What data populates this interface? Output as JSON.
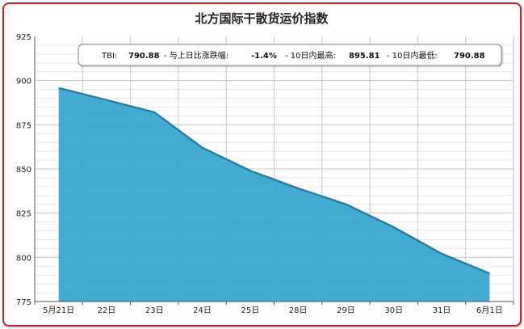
{
  "chart_data": {
    "type": "area",
    "title": "北方国际干散货运价指数",
    "xlabel": "",
    "ylabel": "",
    "categories": [
      "5月21日",
      "22日",
      "23日",
      "24日",
      "25日",
      "28日",
      "29日",
      "30日",
      "31日",
      "6月1日"
    ],
    "series": [
      {
        "values": [
          895.81,
          889,
          882,
          862,
          849,
          839,
          830,
          817,
          802,
          790.88
        ]
      }
    ],
    "ylim": [
      775,
      925
    ],
    "yticks": [
      775,
      800,
      825,
      850,
      875,
      900,
      925
    ],
    "grid": true,
    "colors": {
      "fill": "#3aa6d0",
      "line": "#1d83ae",
      "frame": "#c0262c"
    }
  },
  "annotation": {
    "tbi_label": "TBI:",
    "tbi_value": "790.88",
    "change_label": "- 与上日比涨跌幅:",
    "change_value": "-1.4%",
    "high_label": "- 10日内最高:",
    "high_value": "895.81",
    "low_label": "- 10日内最低:",
    "low_value": "790.88"
  }
}
